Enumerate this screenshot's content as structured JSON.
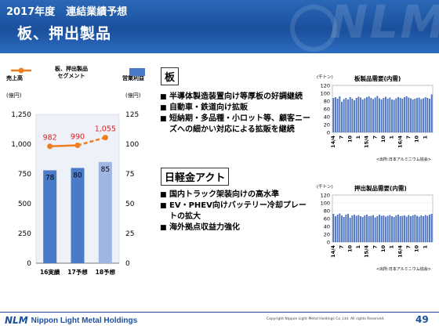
{
  "header": {
    "year": "2017年度",
    "subtitle": "連結業績予想",
    "title": "板、押出製品",
    "deco": "NLM"
  },
  "main_chart": {
    "legend_left": "売上高",
    "legend_mid": "板、押出製品\nセグメント",
    "legend_right": "営業利益",
    "unit_left": "(億円)",
    "unit_right": "(億円)",
    "left_ticks": [
      "1,250",
      "1,000",
      "750",
      "500",
      "250",
      "0"
    ],
    "right_ticks": [
      "125",
      "100",
      "75",
      "50",
      "25",
      "0"
    ]
  },
  "chart_data": [
    {
      "type": "bar",
      "categories": [
        "16実績",
        "17予想",
        "18予想"
      ],
      "series": [
        {
          "name": "営業利益",
          "values": [
            78,
            80,
            85
          ],
          "axis": "right",
          "color": "#4a7ac8",
          "label_values": [
            "78",
            "80",
            "85"
          ]
        },
        {
          "name": "売上高",
          "values": [
            982,
            990,
            1055
          ],
          "axis": "left",
          "type": "line",
          "color": "#f07d1e",
          "label_values": [
            "982",
            "990",
            "1,055"
          ]
        }
      ],
      "ylim_left": [
        0,
        1250
      ],
      "ylim_right": [
        0,
        125
      ]
    },
    {
      "type": "bar",
      "title": "板製品需要(内需)",
      "ylabel": "(千トン)",
      "y_ticks": [
        "120",
        "100",
        "80",
        "60",
        "40",
        "20",
        "0"
      ],
      "ylim": [
        0,
        120
      ],
      "x_labels": [
        "14/4",
        "7",
        "10",
        "1",
        "15/4",
        "7",
        "10",
        "1",
        "16/4",
        "7",
        "10",
        "1"
      ],
      "note": "<出所:日本アルミニウム協会>",
      "values": [
        88,
        90,
        86,
        92,
        78,
        85,
        88,
        84,
        90,
        86,
        82,
        88,
        91,
        89,
        84,
        87,
        90,
        92,
        88,
        85,
        89,
        93,
        87,
        84,
        88,
        91,
        86,
        89,
        84,
        83,
        87,
        90,
        88,
        86,
        90,
        92,
        89,
        87,
        84,
        86,
        88,
        89,
        85,
        87,
        90,
        88,
        86,
        97
      ]
    },
    {
      "type": "bar",
      "title": "押出製品需要(内需)",
      "ylabel": "(千トン)",
      "y_ticks": [
        "120",
        "100",
        "80",
        "60",
        "40",
        "20",
        "0"
      ],
      "ylim": [
        0,
        120
      ],
      "x_labels": [
        "14/4",
        "7",
        "10",
        "1",
        "15/4",
        "7",
        "10",
        "1",
        "16/4",
        "7",
        "10",
        "1"
      ],
      "note": "<出所:日本アルミニウム協会>",
      "values": [
        72,
        66,
        70,
        73,
        68,
        64,
        70,
        72,
        62,
        68,
        70,
        67,
        69,
        66,
        64,
        68,
        70,
        66,
        67,
        69,
        63,
        66,
        70,
        67,
        68,
        65,
        67,
        69,
        66,
        64,
        68,
        70,
        66,
        67,
        68,
        65,
        69,
        66,
        68,
        70,
        67,
        65,
        68,
        66,
        69,
        67,
        70,
        72
      ]
    }
  ],
  "section1": {
    "title": "板",
    "bullets": [
      "半導体製造装置向け等厚板の好調継続",
      "自動車・鉄道向け拡販",
      "短納期・多品種・小ロット等、顧客ニーズへの細かい対応による拡販を継続"
    ]
  },
  "section2": {
    "title": "日軽金アクト",
    "bullets": [
      "国内トラック架装向けの高水準",
      "EV・PHEV向けバッテリー冷却プレートの拡大",
      "海外拠点収益力強化"
    ]
  },
  "footer": {
    "logo_mark": "NLM",
    "company": "Nippon Light Metal Holdings",
    "copyright": "Copyright Nippon Light Metal Holdings Co.,Ltd. All rights Reserved.",
    "page": "49"
  }
}
